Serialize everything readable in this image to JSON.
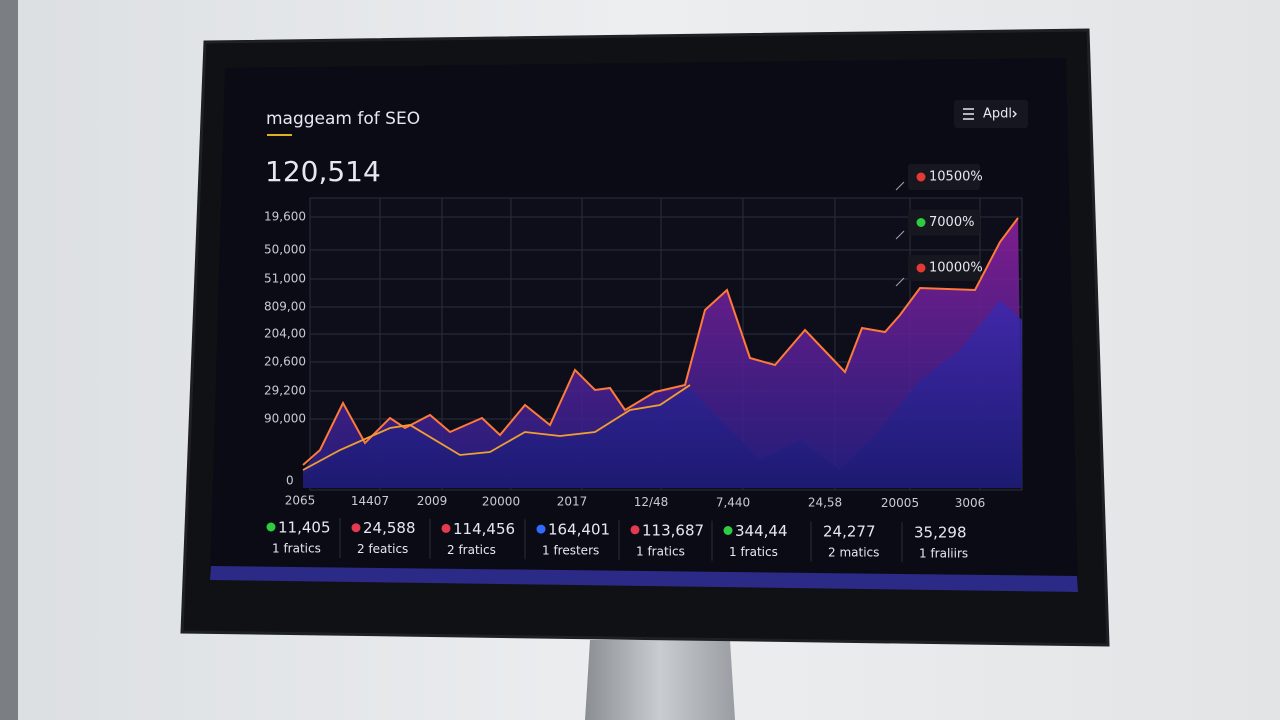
{
  "header": {
    "title": "maggeam fof SEO",
    "menu": "Apdl"
  },
  "summary": {
    "total": "120,514"
  },
  "chart": {
    "y_labels": [
      "19,600",
      "50,000",
      "51,000",
      "809,00",
      "204,00",
      "20,600",
      "29,200",
      "90,000",
      "0"
    ],
    "x_labels": [
      "2065",
      "14407",
      "2009",
      "20000",
      "2017",
      "12/48",
      "7,440",
      "24,58",
      "20005",
      "3006"
    ],
    "annotations": [
      {
        "label": "10500%",
        "color": "#e53935"
      },
      {
        "label": "7000%",
        "color": "#2ecc40"
      },
      {
        "label": "10000%",
        "color": "#e53935"
      }
    ]
  },
  "metrics": [
    {
      "value": "11,405",
      "label": "1 fratics",
      "color": "#2ecc40"
    },
    {
      "value": "24,588",
      "label": "2 featics",
      "color": "#e53950"
    },
    {
      "value": "114,456",
      "label": "2 fratics",
      "color": "#e53950"
    },
    {
      "value": "164,401",
      "label": "1 fresters",
      "color": "#2f6bff"
    },
    {
      "value": "113,687",
      "label": "1 fratics",
      "color": "#e53950"
    },
    {
      "value": "344,44",
      "label": "1 fratics",
      "color": "#2ecc40"
    },
    {
      "value": "24,277",
      "label": "2 matics"
    },
    {
      "value": "35,298",
      "label": "1 fraliirs"
    }
  ]
}
